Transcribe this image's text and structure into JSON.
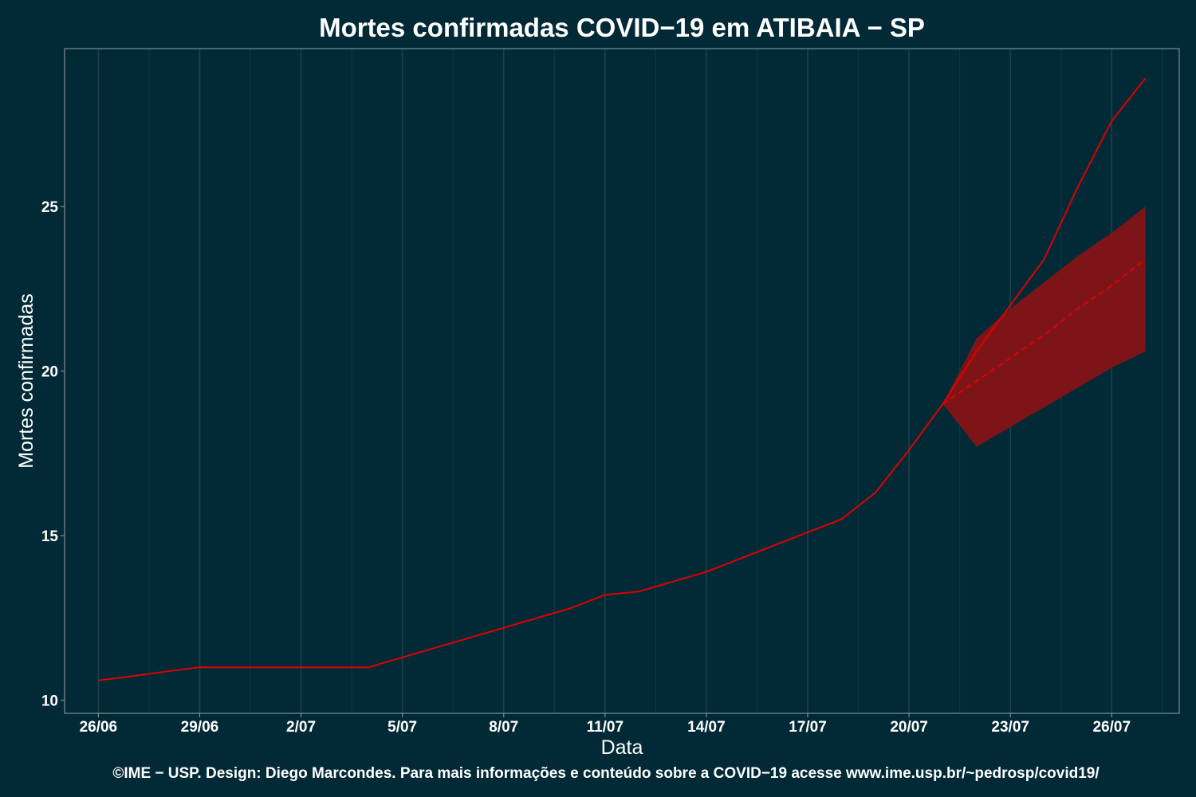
{
  "chart_data": {
    "type": "line",
    "title": "Mortes confirmadas COVID−19 em ATIBAIA − SP",
    "xlabel": "Data",
    "ylabel": "Mortes confirmadas",
    "caption": "©IME − USP. Design: Diego Marcondes. Para mais informações e conteúdo sobre a COVID−19 acesse www.ime.usp.br/~pedrosp/covid19/",
    "x_tick_labels": [
      "26/06",
      "29/06",
      "2/07",
      "5/07",
      "8/07",
      "11/07",
      "14/07",
      "17/07",
      "20/07",
      "23/07",
      "26/07"
    ],
    "y_ticks": [
      10,
      15,
      20,
      25
    ],
    "ylim": [
      9.6,
      29.8
    ],
    "xlim": [
      "25/06",
      "28/07"
    ],
    "grid": "vertical",
    "series": [
      {
        "style": "solid",
        "color": "#e00000",
        "x": [
          "26/06",
          "27/06",
          "28/06",
          "29/06",
          "30/06",
          "1/07",
          "2/07",
          "3/07",
          "4/07",
          "5/07",
          "6/07",
          "7/07",
          "8/07",
          "9/07",
          "10/07",
          "11/07",
          "12/07",
          "13/07",
          "14/07",
          "15/07",
          "16/07",
          "17/07",
          "18/07",
          "19/07",
          "20/07",
          "21/07",
          "22/07",
          "23/07",
          "24/07",
          "25/07",
          "26/07",
          "27/07"
        ],
        "values": [
          10.6,
          10.73,
          10.87,
          11.0,
          11.0,
          11.0,
          11.0,
          11.0,
          11.0,
          11.3,
          11.6,
          11.9,
          12.2,
          12.5,
          12.8,
          13.2,
          13.3,
          13.6,
          13.9,
          14.3,
          14.7,
          15.1,
          15.5,
          16.3,
          17.6,
          19.0,
          20.6,
          22.0,
          23.4,
          25.6,
          27.6,
          28.9
        ]
      },
      {
        "style": "dashed",
        "color": "#e00000",
        "x": [
          "21/07",
          "22/07",
          "23/07",
          "24/07",
          "25/07",
          "26/07",
          "27/07"
        ],
        "values": [
          19.0,
          19.7,
          20.4,
          21.1,
          21.9,
          22.6,
          23.4
        ]
      }
    ],
    "interval": {
      "color": "#7d1418",
      "x": [
        "21/07",
        "22/07",
        "23/07",
        "24/07",
        "25/07",
        "26/07",
        "27/07"
      ],
      "upper": [
        19.0,
        21.0,
        21.9,
        22.7,
        23.5,
        24.2,
        25.0
      ],
      "lower": [
        19.0,
        17.7,
        18.3,
        18.9,
        19.5,
        20.1,
        20.6
      ]
    }
  }
}
